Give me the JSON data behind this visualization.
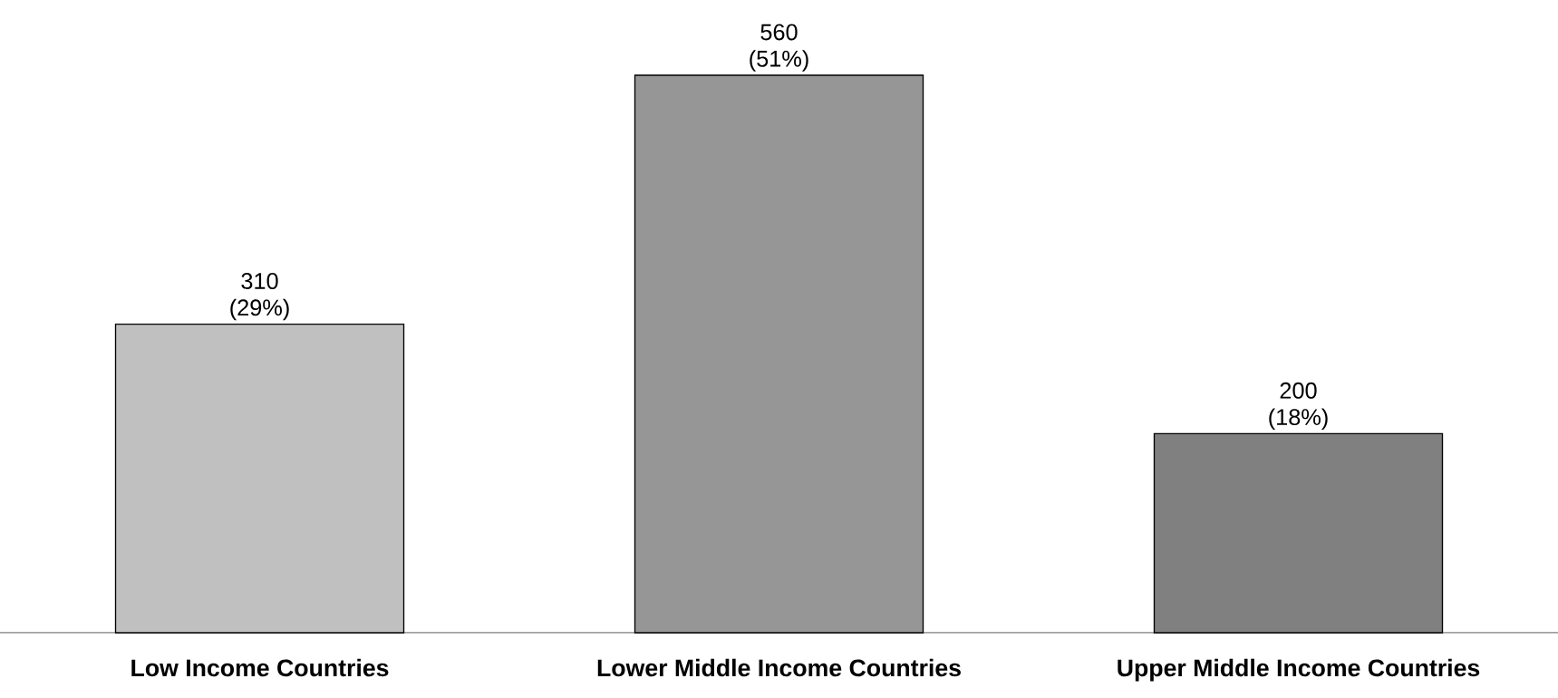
{
  "chart_data": {
    "type": "bar",
    "categories": [
      "Low Income Countries",
      "Lower Middle Income Countries",
      "Upper Middle Income Countries"
    ],
    "values": [
      310,
      560,
      200
    ],
    "colors": [
      "#c0c0c0",
      "#969696",
      "#808080"
    ],
    "value_labels": [
      "310 (29%)",
      "560 (51%)",
      "200 (18%)"
    ]
  }
}
